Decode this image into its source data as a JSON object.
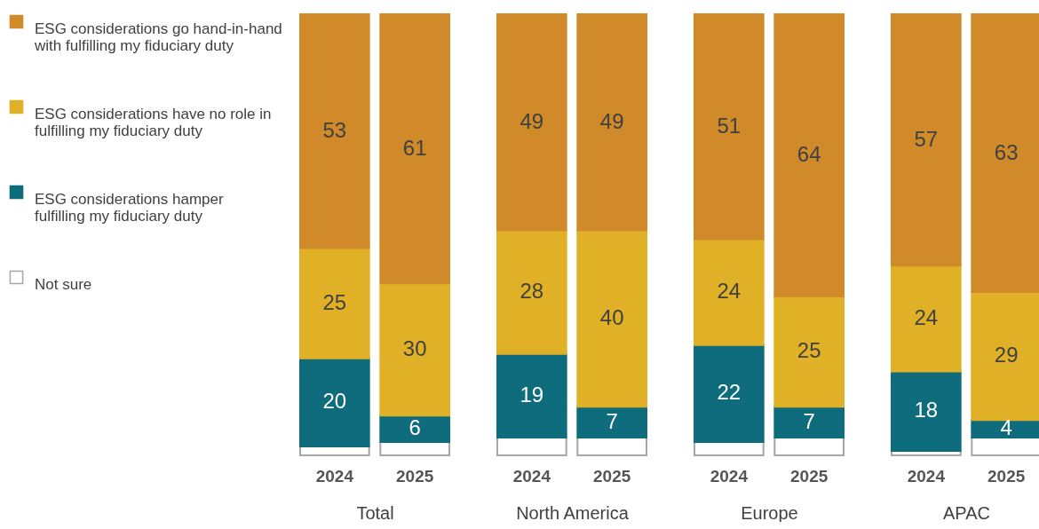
{
  "chart_data": [
    {
      "type": "bar",
      "stacked": true,
      "xlabel": "Total",
      "categories": [
        "2024",
        "2025"
      ],
      "legend": "left",
      "series": [
        {
          "name": "Not sure",
          "color": "#ffffff",
          "values": [
            2,
            3
          ],
          "value_labels": [
            null,
            null
          ]
        },
        {
          "name": "ESG considerations hamper fulfilling my fiduciary duty",
          "color": "#0e6c7c",
          "values": [
            20,
            6
          ],
          "value_labels": [
            "20",
            "6"
          ]
        },
        {
          "name": "ESG considerations have no role in fulfilling my fiduciary duty",
          "color": "#e0b126",
          "values": [
            25,
            30
          ],
          "value_labels": [
            "25",
            "30"
          ]
        },
        {
          "name": "ESG considerations go hand-in-hand with fulfilling my fiduciary duty",
          "color": "#d08a2a",
          "values": [
            53,
            61
          ],
          "value_labels": [
            "53",
            "61"
          ]
        }
      ]
    },
    {
      "type": "bar",
      "stacked": true,
      "xlabel": "North America",
      "categories": [
        "2024",
        "2025"
      ],
      "series": [
        {
          "color": "#ffffff",
          "values": [
            4,
            4
          ],
          "value_labels": [
            null,
            null
          ]
        },
        {
          "color": "#0e6c7c",
          "values": [
            19,
            7
          ],
          "value_labels": [
            "19",
            "7"
          ]
        },
        {
          "color": "#e0b126",
          "values": [
            28,
            40
          ],
          "value_labels": [
            "28",
            "40"
          ]
        },
        {
          "color": "#d08a2a",
          "values": [
            49,
            49
          ],
          "value_labels": [
            "49",
            "49"
          ]
        }
      ]
    },
    {
      "type": "bar",
      "stacked": true,
      "xlabel": "Europe",
      "categories": [
        "2024",
        "2025"
      ],
      "series": [
        {
          "color": "#ffffff",
          "values": [
            3,
            4
          ],
          "value_labels": [
            null,
            null
          ]
        },
        {
          "color": "#0e6c7c",
          "values": [
            22,
            7
          ],
          "value_labels": [
            "22",
            "7"
          ]
        },
        {
          "color": "#e0b126",
          "values": [
            24,
            25
          ],
          "value_labels": [
            "24",
            "25"
          ]
        },
        {
          "color": "#d08a2a",
          "values": [
            51,
            64
          ],
          "value_labels": [
            "51",
            "64"
          ]
        }
      ]
    },
    {
      "type": "bar",
      "stacked": true,
      "xlabel": "APAC",
      "categories": [
        "2024",
        "2025"
      ],
      "series": [
        {
          "color": "#ffffff",
          "values": [
            1,
            4
          ],
          "value_labels": [
            null,
            null
          ]
        },
        {
          "color": "#0e6c7c",
          "values": [
            18,
            4
          ],
          "value_labels": [
            "18",
            "4"
          ]
        },
        {
          "color": "#e0b126",
          "values": [
            24,
            29
          ],
          "value_labels": [
            "24",
            "29"
          ]
        },
        {
          "color": "#d08a2a",
          "values": [
            57,
            63
          ],
          "value_labels": [
            "57",
            "63"
          ]
        }
      ]
    }
  ]
}
